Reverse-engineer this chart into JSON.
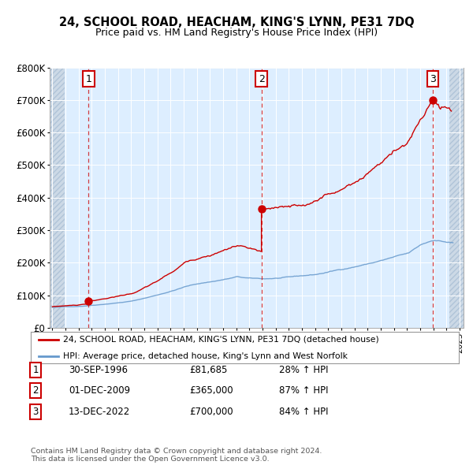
{
  "title": "24, SCHOOL ROAD, HEACHAM, KING'S LYNN, PE31 7DQ",
  "subtitle": "Price paid vs. HM Land Registry's House Price Index (HPI)",
  "sale_dates_num": [
    1996.75,
    2009.917,
    2022.958
  ],
  "sale_prices": [
    81685,
    365000,
    700000
  ],
  "sale_labels": [
    "1",
    "2",
    "3"
  ],
  "sale_date_labels": [
    "30-SEP-1996",
    "01-DEC-2009",
    "13-DEC-2022"
  ],
  "sale_price_labels": [
    "£81,685",
    "£365,000",
    "£700,000"
  ],
  "sale_hpi_labels": [
    "28% ↑ HPI",
    "87% ↑ HPI",
    "84% ↑ HPI"
  ],
  "legend_entries": [
    "24, SCHOOL ROAD, HEACHAM, KING'S LYNN, PE31 7DQ (detached house)",
    "HPI: Average price, detached house, King's Lynn and West Norfolk"
  ],
  "footer": "Contains HM Land Registry data © Crown copyright and database right 2024.\nThis data is licensed under the Open Government Licence v3.0.",
  "line_color_red": "#cc0000",
  "line_color_blue": "#6699cc",
  "background_color": "#ddeeff",
  "ylim": [
    0,
    800000
  ],
  "xlim_start": 1993.8,
  "xlim_end": 2025.3,
  "hatch_end": 1994.917,
  "hatch_start2": 2024.25,
  "red_line_start": 1994.0,
  "blue_line_start": 1994.0
}
